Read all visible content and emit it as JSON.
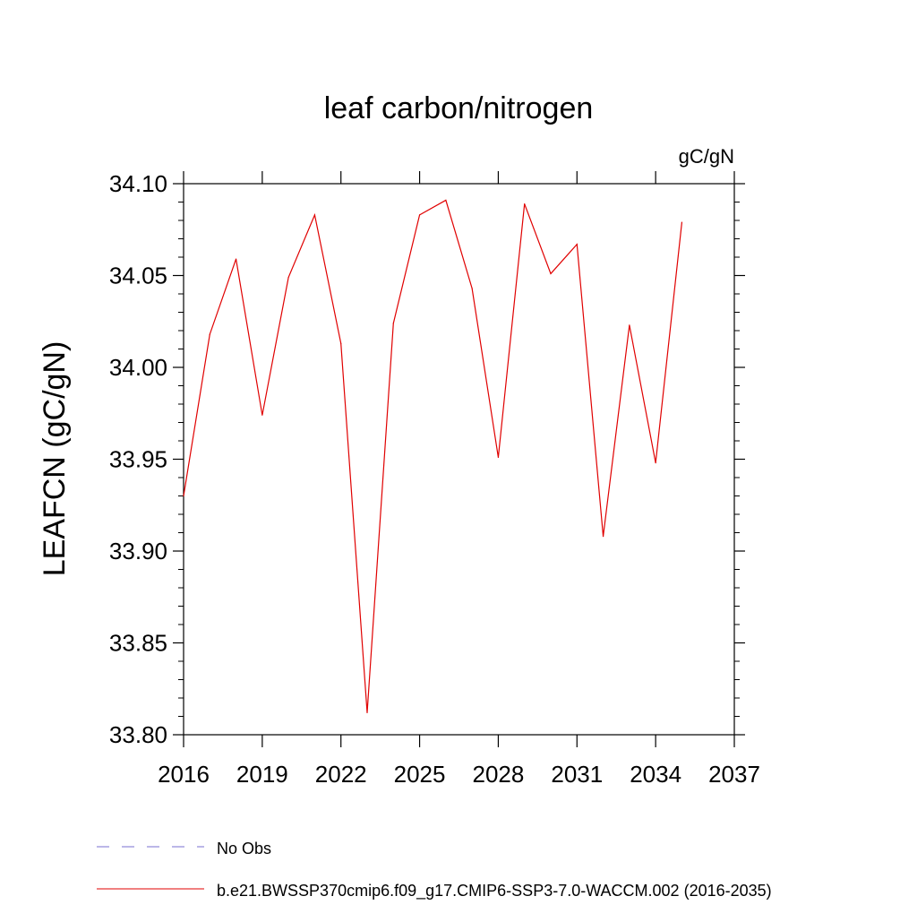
{
  "chart_data": {
    "type": "line",
    "title": "leaf carbon/nitrogen",
    "units_label": "gC/gN",
    "ylabel": "LEAFCN  (gC/gN)",
    "xlabel": "",
    "xlim": [
      2016,
      2037
    ],
    "ylim": [
      33.8,
      34.1
    ],
    "x_ticks": [
      2016,
      2019,
      2022,
      2025,
      2028,
      2031,
      2034,
      2037
    ],
    "x_tick_labels": [
      "2016",
      "2019",
      "2022",
      "2025",
      "2028",
      "2031",
      "2034",
      "2037"
    ],
    "y_ticks": [
      33.8,
      33.85,
      33.9,
      33.95,
      34.0,
      34.05,
      34.1
    ],
    "y_tick_labels": [
      "33.80",
      "33.85",
      "33.90",
      "33.95",
      "34.00",
      "34.05",
      "34.10"
    ],
    "grid": false,
    "legend_position": "bottom-left",
    "series": [
      {
        "name": "b.e21.BWSSP370cmip6.f09_g17.CMIP6-SSP3-7.0-WACCM.002 (2016-2035)",
        "color": "#e00000",
        "style": "solid",
        "x": [
          2016,
          2017,
          2018,
          2019,
          2020,
          2021,
          2022,
          2023,
          2024,
          2025,
          2026,
          2027,
          2028,
          2029,
          2030,
          2031,
          2032,
          2033,
          2034,
          2035
        ],
        "values": [
          33.93,
          34.018,
          34.059,
          33.974,
          34.049,
          34.083,
          34.013,
          33.812,
          34.024,
          34.083,
          34.091,
          34.043,
          33.951,
          34.089,
          34.051,
          34.067,
          33.908,
          34.023,
          33.948,
          34.079
        ]
      }
    ],
    "legend": [
      {
        "label": "No Obs",
        "color": "#7a6fd0",
        "style": "dashed"
      },
      {
        "label": "b.e21.BWSSP370cmip6.f09_g17.CMIP6-SSP3-7.0-WACCM.002 (2016-2035)",
        "color": "#e00000",
        "style": "solid"
      }
    ]
  }
}
